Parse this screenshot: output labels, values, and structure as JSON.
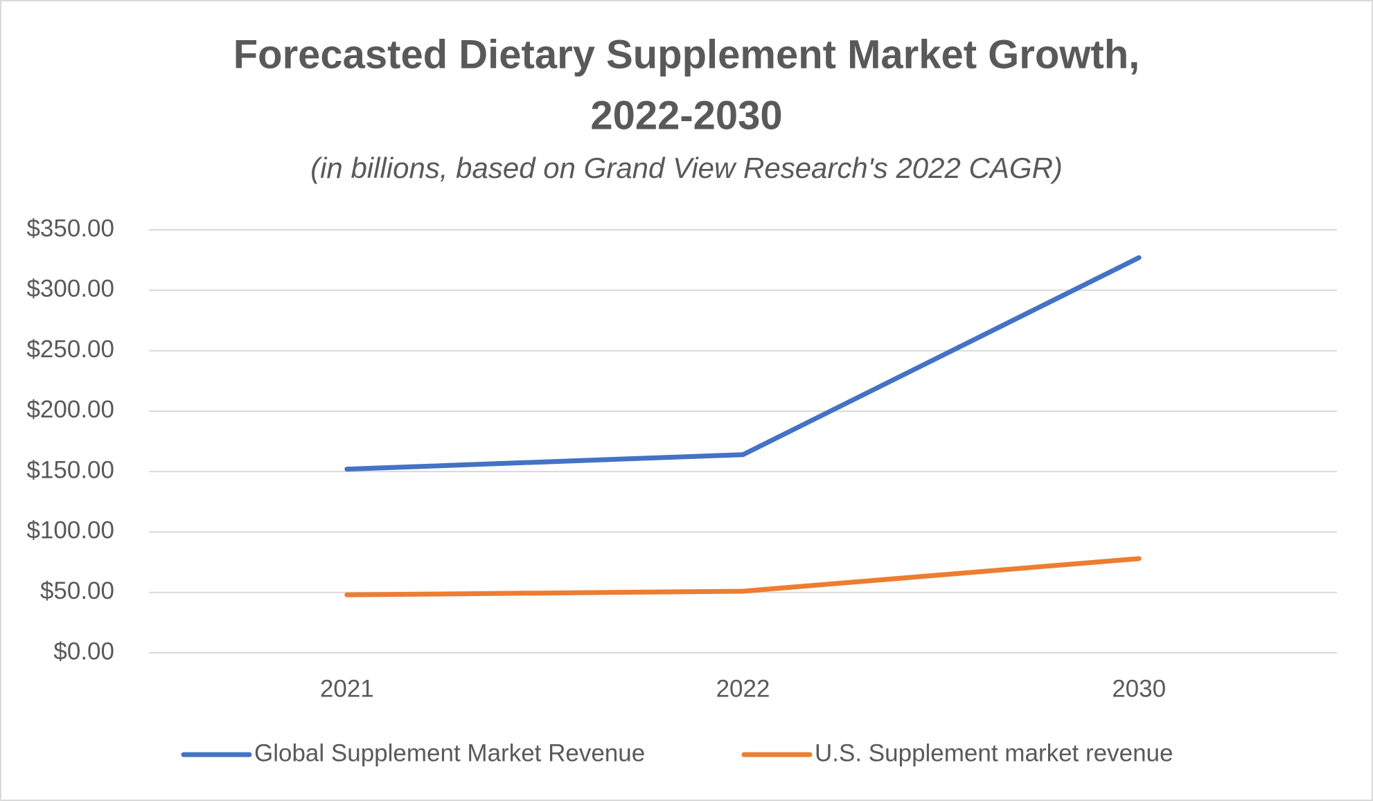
{
  "chart_data": {
    "type": "line",
    "title": "Forecasted Dietary Supplement Market Growth,",
    "title_line2": "2022-2030",
    "subtitle": "(in billions, based on Grand View Research's 2022 CAGR)",
    "categories": [
      "2021",
      "2022",
      "2030"
    ],
    "series": [
      {
        "name": "Global Supplement Market Revenue",
        "color": "#4472c4",
        "values": [
          152,
          164,
          327
        ]
      },
      {
        "name": "U.S. Supplement market revenue",
        "color": "#ed7d31",
        "values": [
          48,
          51,
          78
        ]
      }
    ],
    "ylim": [
      0,
      350
    ],
    "yticks": [
      {
        "value": 0,
        "label": "$0.00"
      },
      {
        "value": 50,
        "label": "$50.00"
      },
      {
        "value": 100,
        "label": "$100.00"
      },
      {
        "value": 150,
        "label": "$150.00"
      },
      {
        "value": 200,
        "label": "$200.00"
      },
      {
        "value": 250,
        "label": "$250.00"
      },
      {
        "value": 300,
        "label": "$300.00"
      },
      {
        "value": 350,
        "label": "$350.00"
      }
    ],
    "grid": true,
    "legend": "bottom"
  }
}
